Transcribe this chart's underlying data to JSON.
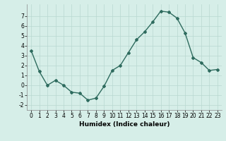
{
  "x": [
    0,
    1,
    2,
    3,
    4,
    5,
    6,
    7,
    8,
    9,
    10,
    11,
    12,
    13,
    14,
    15,
    16,
    17,
    18,
    19,
    20,
    21,
    22,
    23
  ],
  "y": [
    3.5,
    1.4,
    0.0,
    0.5,
    0.0,
    -0.7,
    -0.8,
    -1.5,
    -1.3,
    -0.1,
    1.5,
    2.0,
    3.3,
    4.6,
    5.4,
    6.4,
    7.5,
    7.4,
    6.8,
    5.3,
    2.8,
    2.3,
    1.5,
    1.6
  ],
  "line_color": "#2e6b5e",
  "marker": "D",
  "marker_size": 2.0,
  "bg_color": "#d6eee8",
  "grid_color": "#b8d8d0",
  "xlabel": "Humidex (Indice chaleur)",
  "ylim": [
    -2.5,
    8.2
  ],
  "xlim": [
    -0.5,
    23.5
  ],
  "yticks": [
    -2,
    -1,
    0,
    1,
    2,
    3,
    4,
    5,
    6,
    7
  ],
  "xticks": [
    0,
    1,
    2,
    3,
    4,
    5,
    6,
    7,
    8,
    9,
    10,
    11,
    12,
    13,
    14,
    15,
    16,
    17,
    18,
    19,
    20,
    21,
    22,
    23
  ],
  "xlabel_fontsize": 6.5,
  "tick_fontsize": 5.5,
  "linewidth": 1.0
}
